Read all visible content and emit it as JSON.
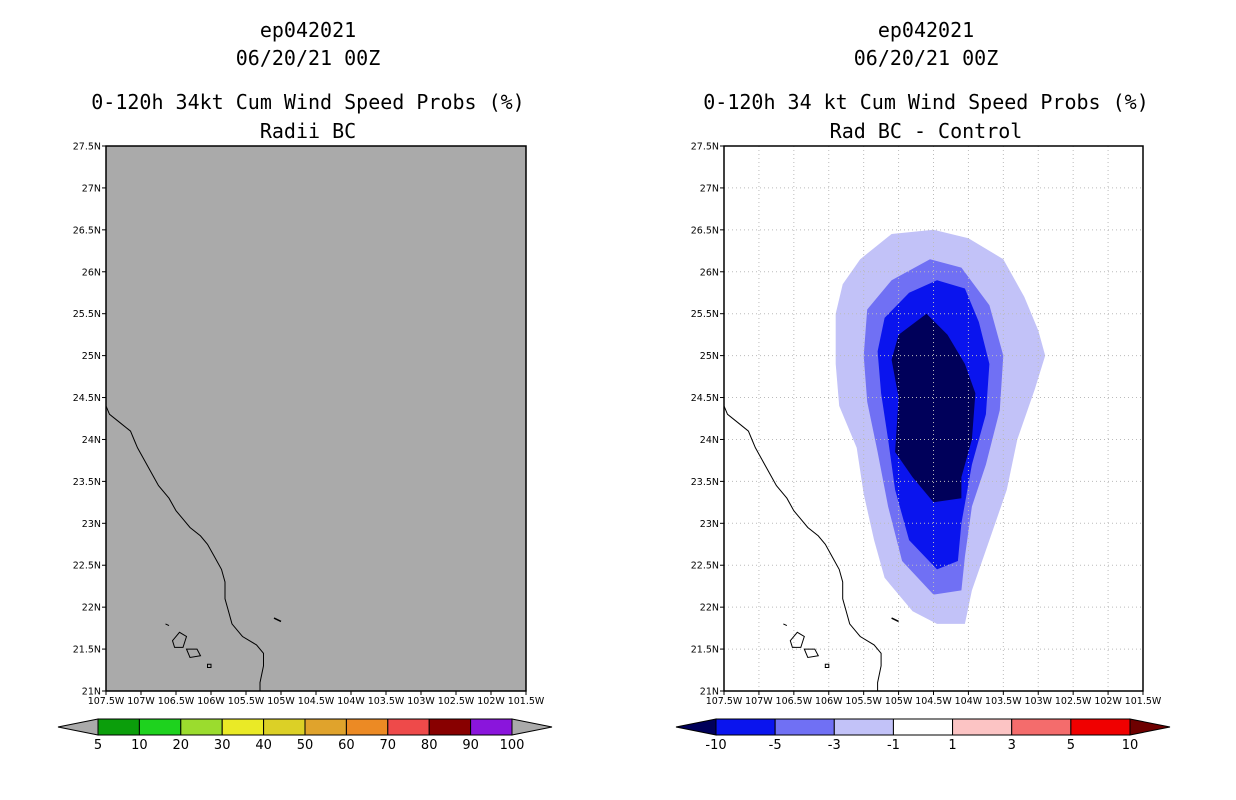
{
  "panels": [
    {
      "id": "left",
      "title_lines": [
        "ep042021",
        "06/20/21 00Z",
        "0-120h 34kt Cum Wind Speed Probs (%)",
        "Radii BC"
      ]
    },
    {
      "id": "right",
      "title_lines": [
        "ep042021",
        "06/20/21 00Z",
        "0-120h 34 kt Cum Wind Speed Probs (%)",
        "Rad BC - Control"
      ]
    }
  ],
  "chart_data": [
    {
      "type": "heatmap",
      "title": "0-120h 34kt Cum Wind Speed Probs (%) Radii BC",
      "xlim": [
        -107.5,
        -101.5
      ],
      "ylim": [
        21,
        27.5
      ],
      "x_ticks": [
        "107.5W",
        "107W",
        "106.5W",
        "106W",
        "105.5W",
        "105W",
        "104.5W",
        "104W",
        "103.5W",
        "103W",
        "102.5W",
        "102W",
        "101.5W"
      ],
      "y_ticks": [
        "21N",
        "21.5N",
        "22N",
        "22.5N",
        "23N",
        "23.5N",
        "24N",
        "24.5N",
        "25N",
        "25.5N",
        "26N",
        "26.5N",
        "27N",
        "27.5N"
      ],
      "grid": false,
      "background_color": "#aaaaaa",
      "field": "below 5% everywhere (uniform gray)",
      "colorbar": {
        "labels": [
          "5",
          "10",
          "20",
          "30",
          "40",
          "50",
          "60",
          "70",
          "80",
          "90",
          "100"
        ],
        "colors": [
          "#aaaaaa",
          "#0b9e0b",
          "#1ed21e",
          "#9bdc2e",
          "#eaea26",
          "#dcd026",
          "#e0a32c",
          "#ec8a24",
          "#ee4a4a",
          "#880000",
          "#8a15dc",
          "#aaaaaa"
        ]
      }
    },
    {
      "type": "heatmap",
      "title": "0-120h 34 kt Cum Wind Speed Probs (%) Rad BC - Control",
      "xlim": [
        -107.5,
        -101.5
      ],
      "ylim": [
        21,
        27.5
      ],
      "x_ticks": [
        "107.5W",
        "107W",
        "106.5W",
        "106W",
        "105.5W",
        "105W",
        "104.5W",
        "104W",
        "103.5W",
        "103W",
        "102.5W",
        "102W",
        "101.5W"
      ],
      "y_ticks": [
        "21N",
        "21.5N",
        "22N",
        "22.5N",
        "23N",
        "23.5N",
        "24N",
        "24.5N",
        "25N",
        "25.5N",
        "26N",
        "26.5N",
        "27N",
        "27.5N"
      ],
      "grid": true,
      "contours": [
        {
          "level": "-3 to -1",
          "color": "#c2c2f8",
          "polygon": [
            [
              -105.9,
              25.5
            ],
            [
              -105.8,
              25.85
            ],
            [
              -105.55,
              26.15
            ],
            [
              -105.1,
              26.45
            ],
            [
              -104.5,
              26.5
            ],
            [
              -104.0,
              26.4
            ],
            [
              -103.5,
              26.15
            ],
            [
              -103.2,
              25.7
            ],
            [
              -103.0,
              25.3
            ],
            [
              -102.9,
              25.0
            ],
            [
              -103.05,
              24.6
            ],
            [
              -103.3,
              24.0
            ],
            [
              -103.45,
              23.4
            ],
            [
              -103.7,
              22.8
            ],
            [
              -103.95,
              22.2
            ],
            [
              -104.05,
              21.8
            ],
            [
              -104.45,
              21.8
            ],
            [
              -104.8,
              21.95
            ],
            [
              -105.2,
              22.35
            ],
            [
              -105.35,
              22.8
            ],
            [
              -105.5,
              23.35
            ],
            [
              -105.6,
              23.9
            ],
            [
              -105.85,
              24.4
            ],
            [
              -105.9,
              24.9
            ]
          ]
        },
        {
          "level": "-5 to -3",
          "color": "#7070f4",
          "polygon": [
            [
              -105.5,
              25.0
            ],
            [
              -105.45,
              25.55
            ],
            [
              -105.1,
              25.9
            ],
            [
              -104.55,
              26.15
            ],
            [
              -104.1,
              26.05
            ],
            [
              -103.7,
              25.6
            ],
            [
              -103.5,
              25.0
            ],
            [
              -103.55,
              24.35
            ],
            [
              -103.75,
              23.7
            ],
            [
              -103.95,
              23.2
            ],
            [
              -104.05,
              22.6
            ],
            [
              -104.1,
              22.2
            ],
            [
              -104.5,
              22.15
            ],
            [
              -104.95,
              22.55
            ],
            [
              -105.15,
              23.2
            ],
            [
              -105.3,
              23.85
            ],
            [
              -105.45,
              24.45
            ]
          ]
        },
        {
          "level": "-10 to -5",
          "color": "#0a14ee",
          "polygon": [
            [
              -105.3,
              25.05
            ],
            [
              -105.2,
              25.45
            ],
            [
              -104.85,
              25.75
            ],
            [
              -104.45,
              25.9
            ],
            [
              -104.05,
              25.8
            ],
            [
              -103.85,
              25.4
            ],
            [
              -103.7,
              24.9
            ],
            [
              -103.75,
              24.3
            ],
            [
              -103.95,
              23.7
            ],
            [
              -104.1,
              23.0
            ],
            [
              -104.15,
              22.55
            ],
            [
              -104.45,
              22.45
            ],
            [
              -104.85,
              22.8
            ],
            [
              -105.05,
              23.4
            ],
            [
              -105.15,
              24.0
            ],
            [
              -105.25,
              24.55
            ]
          ]
        },
        {
          "level": "< -10",
          "color": "#00005a",
          "polygon": [
            [
              -105.1,
              24.95
            ],
            [
              -105.0,
              25.25
            ],
            [
              -104.6,
              25.5
            ],
            [
              -104.3,
              25.25
            ],
            [
              -104.05,
              24.9
            ],
            [
              -103.9,
              24.55
            ],
            [
              -103.95,
              24.0
            ],
            [
              -104.1,
              23.55
            ],
            [
              -104.1,
              23.3
            ],
            [
              -104.5,
              23.25
            ],
            [
              -104.8,
              23.55
            ],
            [
              -105.05,
              23.85
            ],
            [
              -105.0,
              24.5
            ]
          ]
        }
      ],
      "colorbar": {
        "labels": [
          "-10",
          "-5",
          "-3",
          "-1",
          "1",
          "3",
          "5",
          "10"
        ],
        "colors": [
          "#00005a",
          "#0a14ee",
          "#7070f4",
          "#c2c2f8",
          "#ffffff",
          "#fcc4c4",
          "#f46c6c",
          "#f00000",
          "#6e0000"
        ]
      }
    }
  ]
}
